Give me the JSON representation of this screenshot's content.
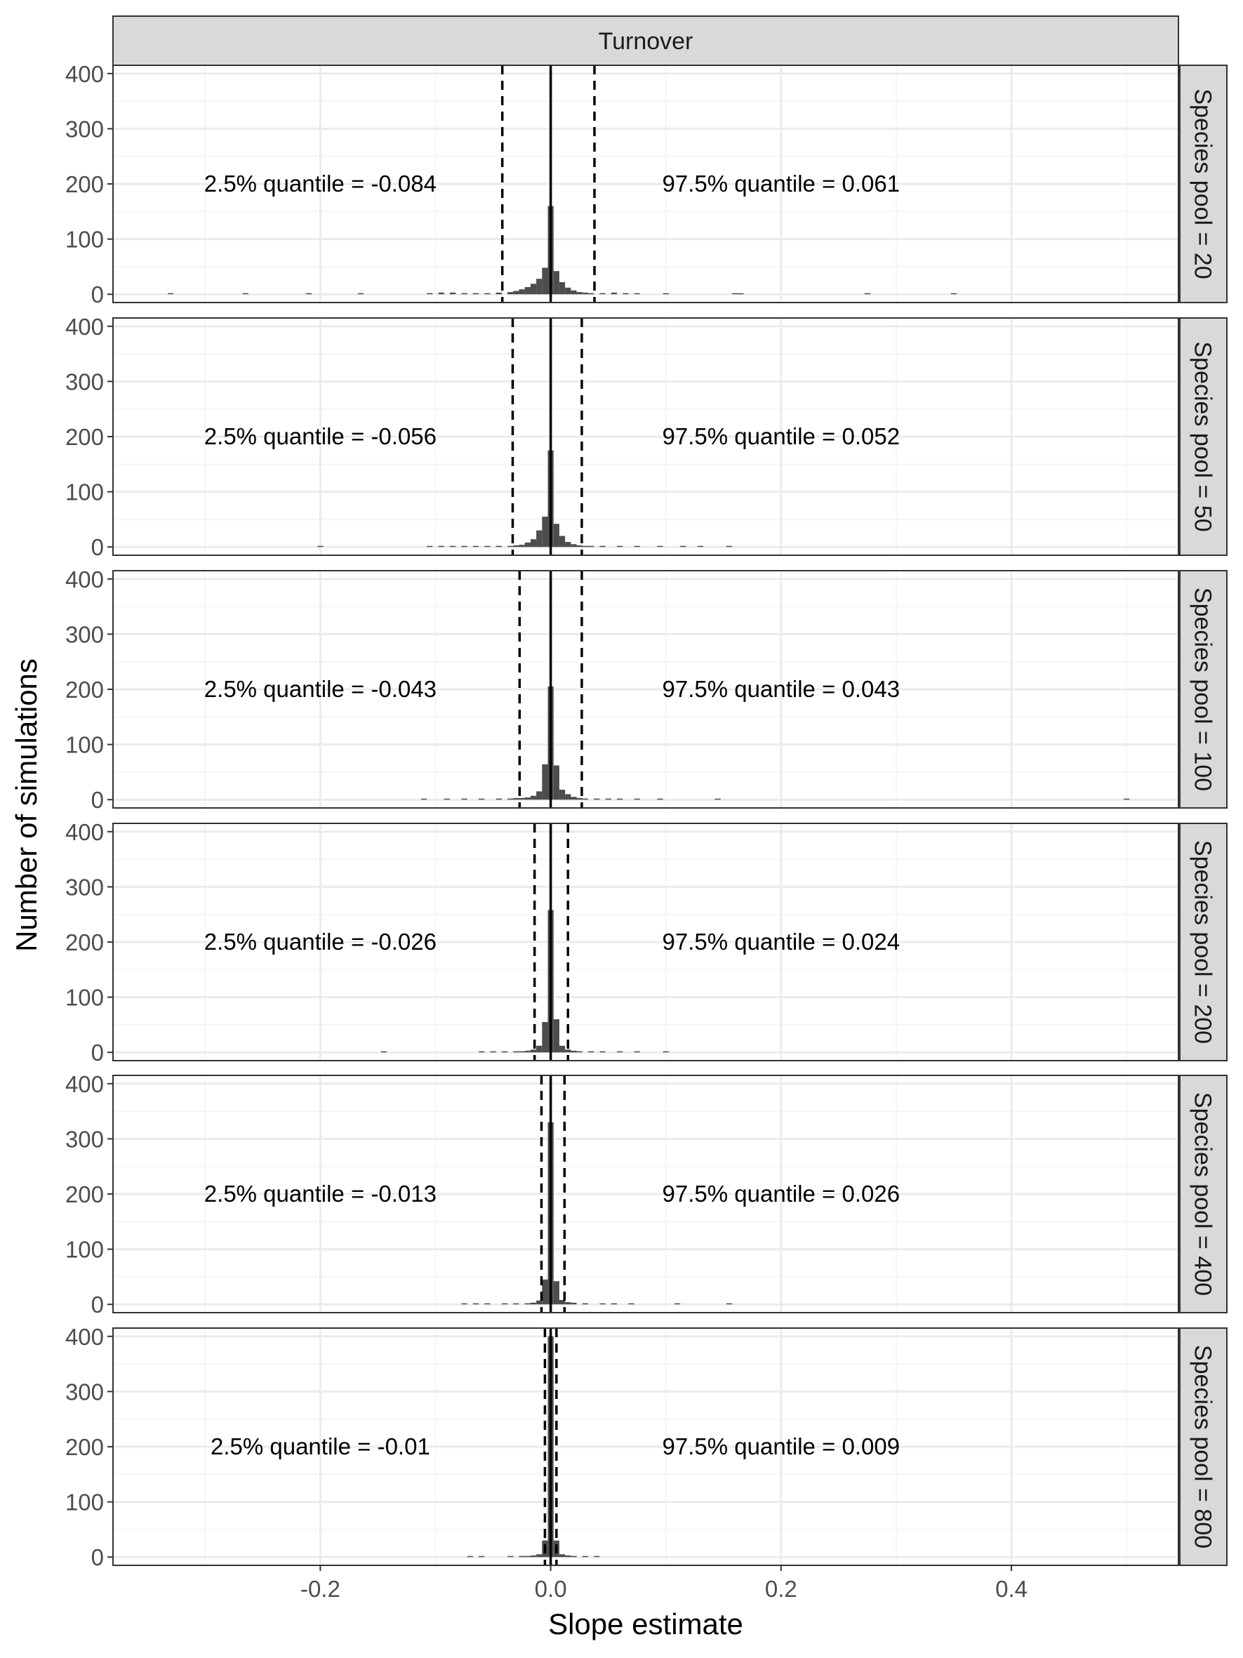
{
  "chart_data": {
    "type": "histogram",
    "title": "Turnover",
    "xlabel": "Slope estimate",
    "ylabel": "Number of simulations",
    "xlim": [
      -0.38,
      0.545
    ],
    "ylim": [
      -15,
      415
    ],
    "x_ticks": [
      -0.2,
      0.0,
      0.2,
      0.4
    ],
    "x_tick_labels": [
      "-0.2",
      "0.0",
      "0.2",
      "0.4"
    ],
    "y_ticks": [
      0,
      100,
      200,
      300,
      400
    ],
    "y_tick_labels": [
      "0",
      "100",
      "200",
      "300",
      "400"
    ],
    "bin_width": 0.005,
    "annotation_y": 200,
    "lower_label_x": -0.2,
    "upper_label_x": 0.2,
    "colors": {
      "bar": "#4d4d4d",
      "grid_major": "#ebebeb",
      "grid_minor": "#f3f3f3",
      "strip_bg": "#d9d9d9",
      "line": "#000000"
    },
    "panels": [
      {
        "strip": "Species pool = 20",
        "lower_q": -0.042,
        "upper_q": 0.038,
        "lower_label": "2.5% quantile = -0.084",
        "upper_label": "97.5% quantile = 0.061",
        "bins": [
          [
            -0.33,
            1
          ],
          [
            -0.265,
            1
          ],
          [
            -0.21,
            1
          ],
          [
            -0.165,
            1
          ],
          [
            -0.105,
            2
          ],
          [
            -0.095,
            3
          ],
          [
            -0.085,
            3
          ],
          [
            -0.075,
            2
          ],
          [
            -0.065,
            2
          ],
          [
            -0.055,
            2
          ],
          [
            -0.045,
            3
          ],
          [
            -0.035,
            4
          ],
          [
            -0.03,
            6
          ],
          [
            -0.025,
            9
          ],
          [
            -0.02,
            13
          ],
          [
            -0.015,
            19
          ],
          [
            -0.01,
            28
          ],
          [
            -0.005,
            48
          ],
          [
            0.0,
            160
          ],
          [
            0.005,
            42
          ],
          [
            0.01,
            22
          ],
          [
            0.015,
            12
          ],
          [
            0.02,
            7
          ],
          [
            0.025,
            4
          ],
          [
            0.03,
            3
          ],
          [
            0.035,
            2
          ],
          [
            0.045,
            2
          ],
          [
            0.055,
            3
          ],
          [
            0.065,
            2
          ],
          [
            0.075,
            1
          ],
          [
            0.1,
            1
          ],
          [
            0.16,
            1
          ],
          [
            0.165,
            1
          ],
          [
            0.275,
            1
          ],
          [
            0.35,
            1
          ]
        ]
      },
      {
        "strip": "Species pool = 50",
        "lower_q": -0.033,
        "upper_q": 0.027,
        "lower_label": "2.5% quantile = -0.056",
        "upper_label": "97.5% quantile = 0.052",
        "bins": [
          [
            -0.2,
            1
          ],
          [
            -0.105,
            1
          ],
          [
            -0.095,
            1
          ],
          [
            -0.085,
            1
          ],
          [
            -0.075,
            1
          ],
          [
            -0.065,
            1
          ],
          [
            -0.055,
            1
          ],
          [
            -0.045,
            2
          ],
          [
            -0.035,
            2
          ],
          [
            -0.03,
            3
          ],
          [
            -0.025,
            4
          ],
          [
            -0.02,
            8
          ],
          [
            -0.015,
            14
          ],
          [
            -0.01,
            30
          ],
          [
            -0.005,
            55
          ],
          [
            0.0,
            175
          ],
          [
            0.005,
            42
          ],
          [
            0.01,
            20
          ],
          [
            0.015,
            9
          ],
          [
            0.02,
            5
          ],
          [
            0.025,
            3
          ],
          [
            0.03,
            2
          ],
          [
            0.035,
            2
          ],
          [
            0.045,
            2
          ],
          [
            0.06,
            1
          ],
          [
            0.075,
            1
          ],
          [
            0.095,
            1
          ],
          [
            0.115,
            1
          ],
          [
            0.13,
            1
          ],
          [
            0.155,
            1
          ]
        ]
      },
      {
        "strip": "Species pool = 100",
        "lower_q": -0.027,
        "upper_q": 0.027,
        "lower_label": "2.5% quantile = -0.043",
        "upper_label": "97.5% quantile = 0.043",
        "bins": [
          [
            -0.11,
            1
          ],
          [
            -0.09,
            1
          ],
          [
            -0.075,
            1
          ],
          [
            -0.06,
            1
          ],
          [
            -0.045,
            2
          ],
          [
            -0.035,
            2
          ],
          [
            -0.03,
            3
          ],
          [
            -0.025,
            3
          ],
          [
            -0.02,
            4
          ],
          [
            -0.015,
            7
          ],
          [
            -0.01,
            15
          ],
          [
            -0.005,
            64
          ],
          [
            0.0,
            205
          ],
          [
            0.005,
            62
          ],
          [
            0.01,
            18
          ],
          [
            0.015,
            10
          ],
          [
            0.02,
            5
          ],
          [
            0.025,
            3
          ],
          [
            0.03,
            2
          ],
          [
            0.04,
            2
          ],
          [
            0.05,
            2
          ],
          [
            0.06,
            1
          ],
          [
            0.075,
            1
          ],
          [
            0.095,
            1
          ],
          [
            0.145,
            1
          ],
          [
            0.5,
            1
          ]
        ]
      },
      {
        "strip": "Species pool = 200",
        "lower_q": -0.014,
        "upper_q": 0.015,
        "lower_label": "2.5% quantile = -0.026",
        "upper_label": "97.5% quantile = 0.024",
        "bins": [
          [
            -0.145,
            1
          ],
          [
            -0.06,
            1
          ],
          [
            -0.05,
            1
          ],
          [
            -0.04,
            1
          ],
          [
            -0.03,
            2
          ],
          [
            -0.025,
            2
          ],
          [
            -0.02,
            3
          ],
          [
            -0.015,
            5
          ],
          [
            -0.01,
            12
          ],
          [
            -0.005,
            55
          ],
          [
            0.0,
            258
          ],
          [
            0.005,
            60
          ],
          [
            0.01,
            12
          ],
          [
            0.015,
            5
          ],
          [
            0.02,
            3
          ],
          [
            0.025,
            2
          ],
          [
            0.035,
            2
          ],
          [
            0.045,
            1
          ],
          [
            0.06,
            1
          ],
          [
            0.075,
            1
          ],
          [
            0.1,
            1
          ]
        ]
      },
      {
        "strip": "Species pool = 400",
        "lower_q": -0.008,
        "upper_q": 0.012,
        "lower_label": "2.5% quantile = -0.013",
        "upper_label": "97.5% quantile = 0.026",
        "bins": [
          [
            -0.075,
            1
          ],
          [
            -0.065,
            1
          ],
          [
            -0.055,
            1
          ],
          [
            -0.04,
            1
          ],
          [
            -0.03,
            1
          ],
          [
            -0.02,
            2
          ],
          [
            -0.015,
            3
          ],
          [
            -0.01,
            7
          ],
          [
            -0.005,
            45
          ],
          [
            0.0,
            330
          ],
          [
            0.005,
            42
          ],
          [
            0.01,
            8
          ],
          [
            0.015,
            4
          ],
          [
            0.02,
            3
          ],
          [
            0.03,
            2
          ],
          [
            0.045,
            1
          ],
          [
            0.055,
            1
          ],
          [
            0.07,
            1
          ],
          [
            0.11,
            1
          ],
          [
            0.155,
            1
          ]
        ]
      },
      {
        "strip": "Species pool = 800",
        "lower_q": -0.005,
        "upper_q": 0.005,
        "lower_label": "2.5% quantile = -0.01",
        "upper_label": "97.5% quantile = 0.009",
        "bins": [
          [
            -0.07,
            1
          ],
          [
            -0.06,
            1
          ],
          [
            -0.035,
            1
          ],
          [
            -0.025,
            2
          ],
          [
            -0.02,
            2
          ],
          [
            -0.015,
            3
          ],
          [
            -0.01,
            5
          ],
          [
            -0.005,
            30
          ],
          [
            0.0,
            400
          ],
          [
            0.005,
            30
          ],
          [
            0.01,
            5
          ],
          [
            0.015,
            3
          ],
          [
            0.02,
            2
          ],
          [
            0.03,
            1
          ],
          [
            0.04,
            1
          ]
        ]
      }
    ]
  }
}
